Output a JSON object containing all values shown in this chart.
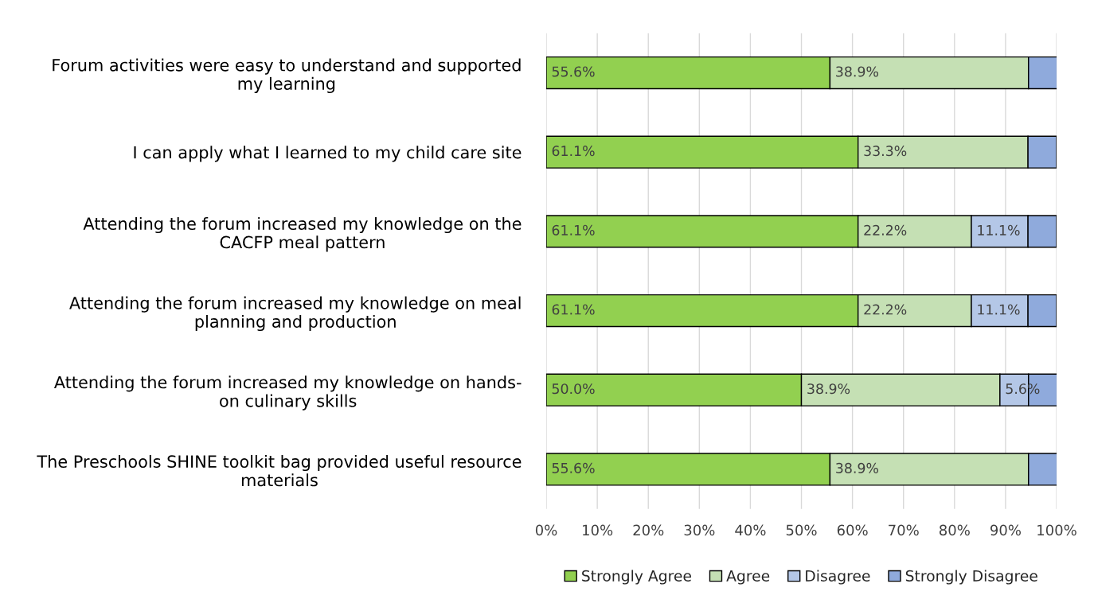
{
  "chart_data": {
    "type": "bar",
    "orientation": "horizontal",
    "stacked": true,
    "categories": [
      "Forum activities were easy to understand and supported\nmy learning",
      "I can apply what I learned to my child care site",
      "Attending the forum increased my knowledge on the\nCACFP meal pattern",
      "Attending the forum increased my knowledge on meal\nplanning and production",
      "Attending the forum increased my knowledge on hands-\non culinary skills",
      "The Preschools SHINE toolkit bag provided useful resource\nmaterials"
    ],
    "series": [
      {
        "name": "Strongly Agree",
        "color": "#92d050",
        "values": [
          55.6,
          61.1,
          61.1,
          61.1,
          50.0,
          55.6
        ],
        "value_labels": [
          "55.6%",
          "61.1%",
          "61.1%",
          "61.1%",
          "50.0%",
          "55.6%"
        ]
      },
      {
        "name": "Agree",
        "color": "#c5e0b4",
        "values": [
          38.9,
          33.3,
          22.2,
          22.2,
          38.9,
          38.9
        ],
        "value_labels": [
          "38.9%",
          "33.3%",
          "22.2%",
          "22.2%",
          "38.9%",
          "38.9%"
        ]
      },
      {
        "name": "Disagree",
        "color": "#b4c7e7",
        "values": [
          null,
          null,
          11.1,
          11.1,
          5.6,
          null
        ],
        "value_labels": [
          null,
          null,
          "11.1%",
          "11.1%",
          "5.6%",
          null
        ]
      },
      {
        "name": "Strongly Disagree",
        "color": "#8faadc",
        "values": [
          5.6,
          5.6,
          5.6,
          5.6,
          5.6,
          5.6
        ]
      }
    ],
    "xlim": [
      0,
      100
    ],
    "xticks": [
      {
        "value": 0,
        "label": "0%"
      },
      {
        "value": 10,
        "label": "10%"
      },
      {
        "value": 20,
        "label": "20%"
      },
      {
        "value": 30,
        "label": "30%"
      },
      {
        "value": 40,
        "label": "40%"
      },
      {
        "value": 50,
        "label": "50%"
      },
      {
        "value": 60,
        "label": "60%"
      },
      {
        "value": 70,
        "label": "70%"
      },
      {
        "value": 80,
        "label": "80%"
      },
      {
        "value": 90,
        "label": "90%"
      },
      {
        "value": 100,
        "label": "100%"
      }
    ],
    "grid": "x",
    "legend": "bottom"
  }
}
